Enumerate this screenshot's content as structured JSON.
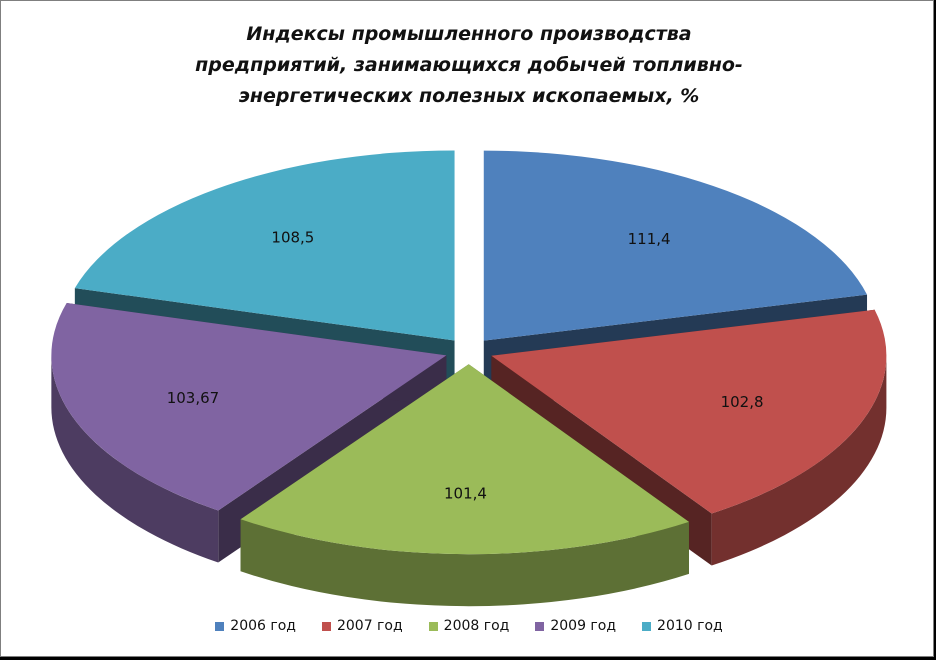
{
  "chart_data": {
    "type": "pie",
    "title": "Индексы промышленного производства\nпредприятий, занимающихся добычей топливно-\nэнергетических полезных ископаемых, %",
    "slices": [
      {
        "name": "2006 год",
        "value": 111.4,
        "label": "111,4",
        "color": "#4f81bd"
      },
      {
        "name": "2007 год",
        "value": 102.8,
        "label": "102,8",
        "color": "#c0504d"
      },
      {
        "name": "2008 год",
        "value": 101.4,
        "label": "101,4",
        "color": "#9bbb59"
      },
      {
        "name": "2009 год",
        "value": 103.67,
        "label": "103,67",
        "color": "#8064a2"
      },
      {
        "name": "2010 год",
        "value": 108.5,
        "label": "108,5",
        "color": "#4bacc6"
      }
    ],
    "legend_position": "bottom",
    "style": "3d-exploded"
  }
}
